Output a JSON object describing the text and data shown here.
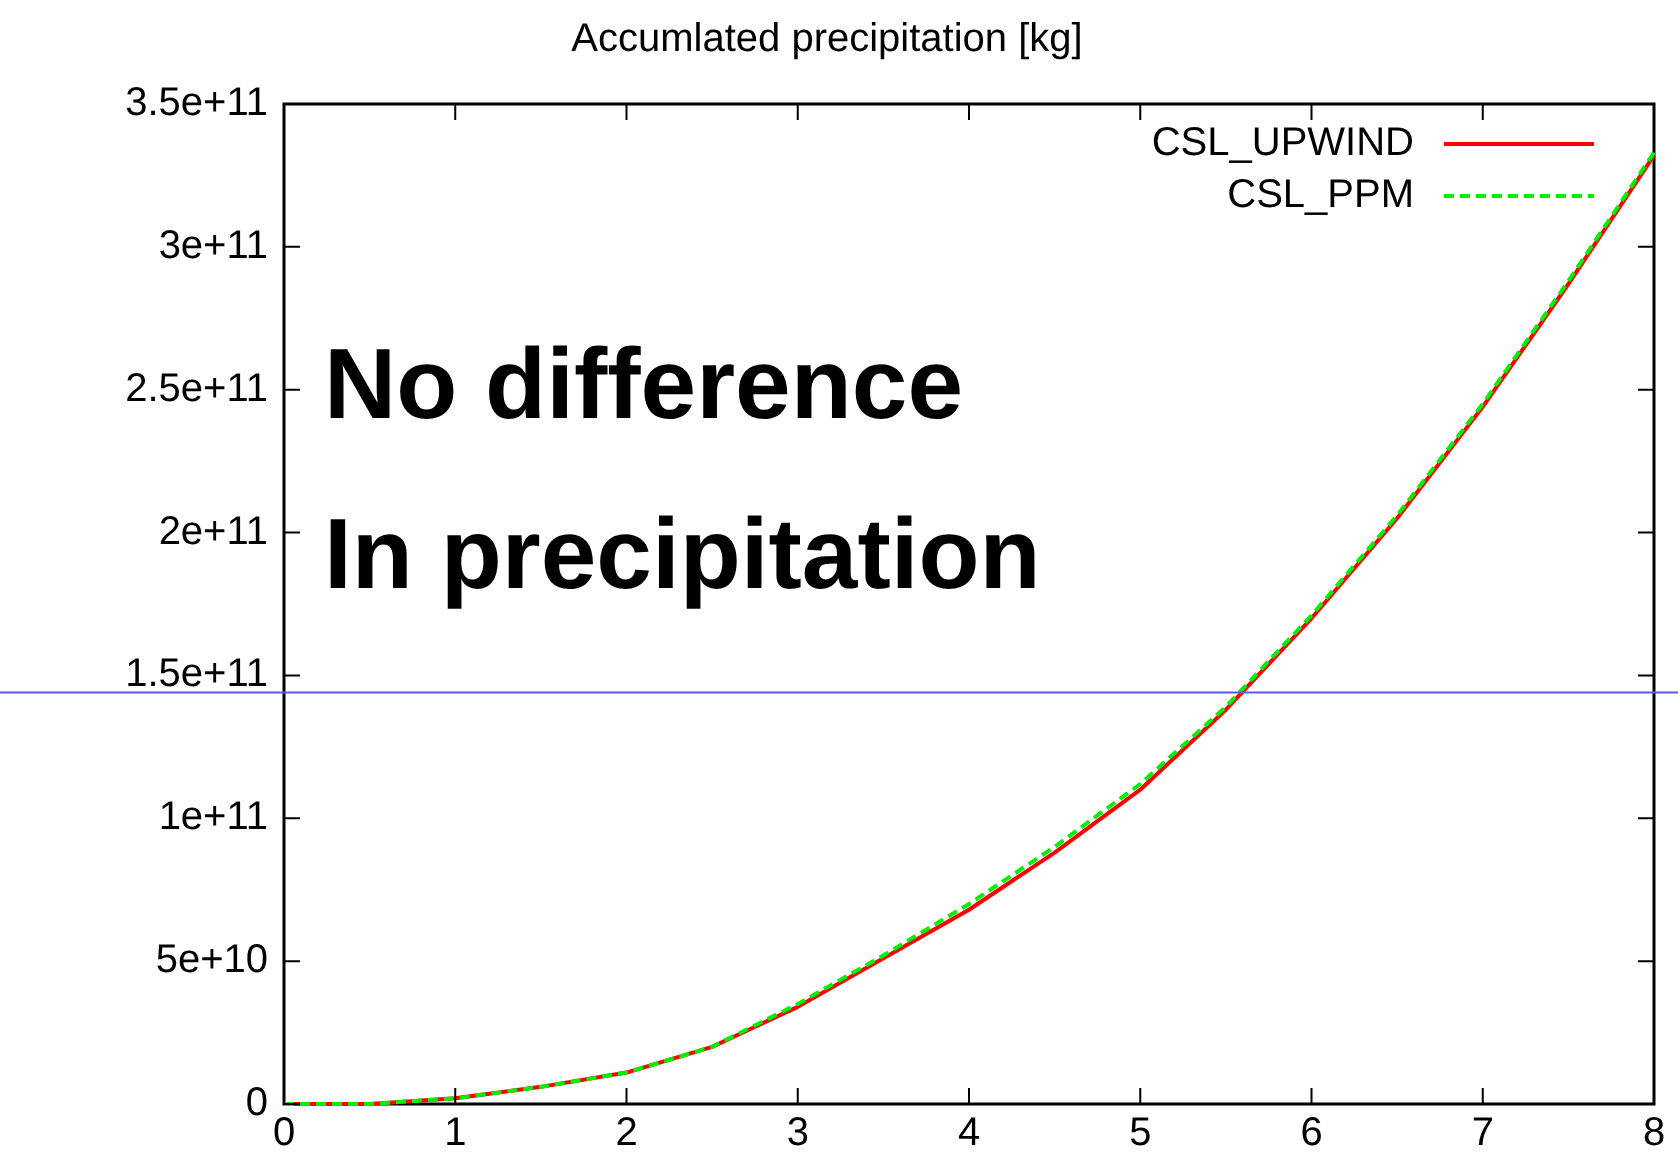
{
  "chart_data": {
    "type": "line",
    "title": "Accumlated precipitation [kg]",
    "x": [
      0,
      0.5,
      1,
      1.5,
      2,
      2.5,
      3,
      3.5,
      4,
      4.5,
      5,
      5.5,
      6,
      6.5,
      7,
      7.5,
      8
    ],
    "series": [
      {
        "name": "CSL_UPWIND",
        "color": "#ff0000",
        "line_style": "solid",
        "values": [
          0,
          0,
          2000000000.0,
          6000000000.0,
          11000000000.0,
          20000000000.0,
          34000000000.0,
          51000000000.0,
          68000000000.0,
          88000000000.0,
          110000000000.0,
          138000000000.0,
          170000000000.0,
          205000000000.0,
          244000000000.0,
          287000000000.0,
          332000000000.0
        ]
      },
      {
        "name": "CSL_PPM",
        "color": "#00ee00",
        "line_style": "dashed",
        "values": [
          0,
          0,
          2000000000.0,
          6000000000.0,
          11000000000.0,
          20000000000.0,
          35000000000.0,
          52000000000.0,
          70000000000.0,
          90000000000.0,
          112000000000.0,
          139000000000.0,
          171000000000.0,
          206000000000.0,
          245000000000.0,
          288000000000.0,
          333000000000.0
        ]
      }
    ],
    "xlim": [
      0,
      8
    ],
    "xticks": [
      0,
      1,
      2,
      3,
      4,
      5,
      6,
      7,
      8
    ],
    "ylim": [
      0,
      350000000000.0
    ],
    "yticks": [
      {
        "value": 0,
        "label": "0"
      },
      {
        "value": 50000000000.0,
        "label": "5e+10"
      },
      {
        "value": 100000000000.0,
        "label": "1e+11"
      },
      {
        "value": 150000000000.0,
        "label": "1.5e+11"
      },
      {
        "value": 200000000000.0,
        "label": "2e+11"
      },
      {
        "value": 250000000000.0,
        "label": "2.5e+11"
      },
      {
        "value": 300000000000.0,
        "label": "3e+11"
      },
      {
        "value": 350000000000.0,
        "label": "3.5e+11"
      }
    ],
    "ref_lines": [
      {
        "axis": "y",
        "value": 144000000000.0,
        "color": "#5a5ae6"
      }
    ],
    "annotations": [
      "No difference",
      "In precipitation"
    ],
    "legend": "top right",
    "grid": false,
    "marker": "none"
  }
}
